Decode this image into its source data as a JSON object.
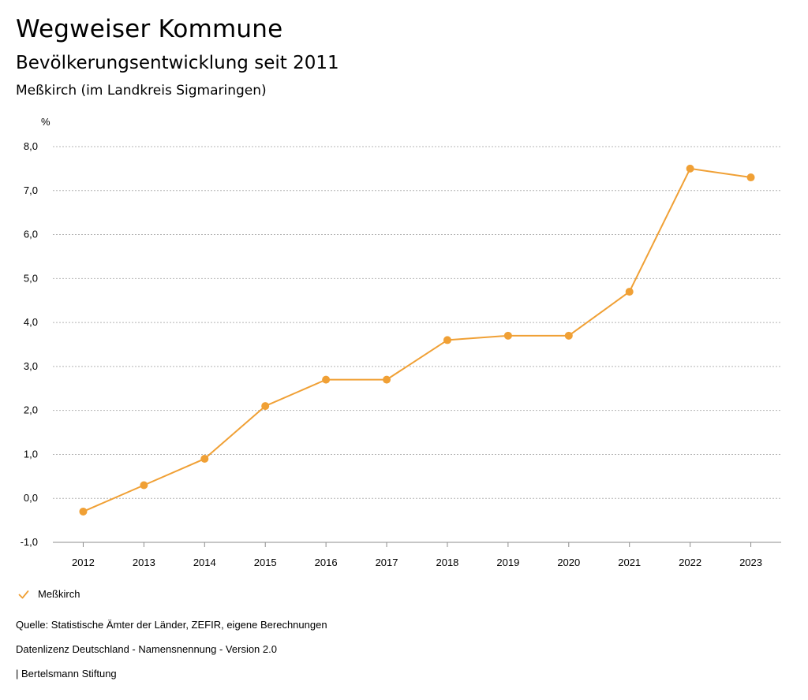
{
  "header": {
    "title": "Wegweiser Kommune",
    "subtitle": "Bevölkerungsentwicklung seit 2011",
    "region": "Meßkirch (im Landkreis Sigmaringen)"
  },
  "legend": {
    "label": "Meßkirch",
    "icon": "check-icon",
    "color": "#f0a035"
  },
  "footer": {
    "source": "Quelle: Statistische Ämter der Länder, ZEFIR, eigene Berechnungen",
    "license": "Datenlizenz Deutschland - Namensnennung - Version 2.0",
    "publisher": "| Bertelsmann Stiftung"
  },
  "chart_data": {
    "type": "line",
    "title": "Bevölkerungsentwicklung seit 2011",
    "xlabel": "",
    "ylabel": "%",
    "categories": [
      "2012",
      "2013",
      "2014",
      "2015",
      "2016",
      "2017",
      "2018",
      "2019",
      "2020",
      "2021",
      "2022",
      "2023"
    ],
    "series": [
      {
        "name": "Meßkirch",
        "color": "#f0a035",
        "values": [
          -0.3,
          0.3,
          0.9,
          2.1,
          2.7,
          2.7,
          3.6,
          3.7,
          3.7,
          4.7,
          7.5,
          7.3
        ]
      }
    ],
    "ylim": [
      -1,
      8
    ],
    "yticks": [
      -1,
      0,
      1,
      2,
      3,
      4,
      5,
      6,
      7,
      8
    ],
    "ytick_labels": [
      "-1,0",
      "0,0",
      "1,0",
      "2,0",
      "3,0",
      "4,0",
      "5,0",
      "6,0",
      "7,0",
      "8,0"
    ],
    "grid": true,
    "legend_position": "bottom-left"
  }
}
